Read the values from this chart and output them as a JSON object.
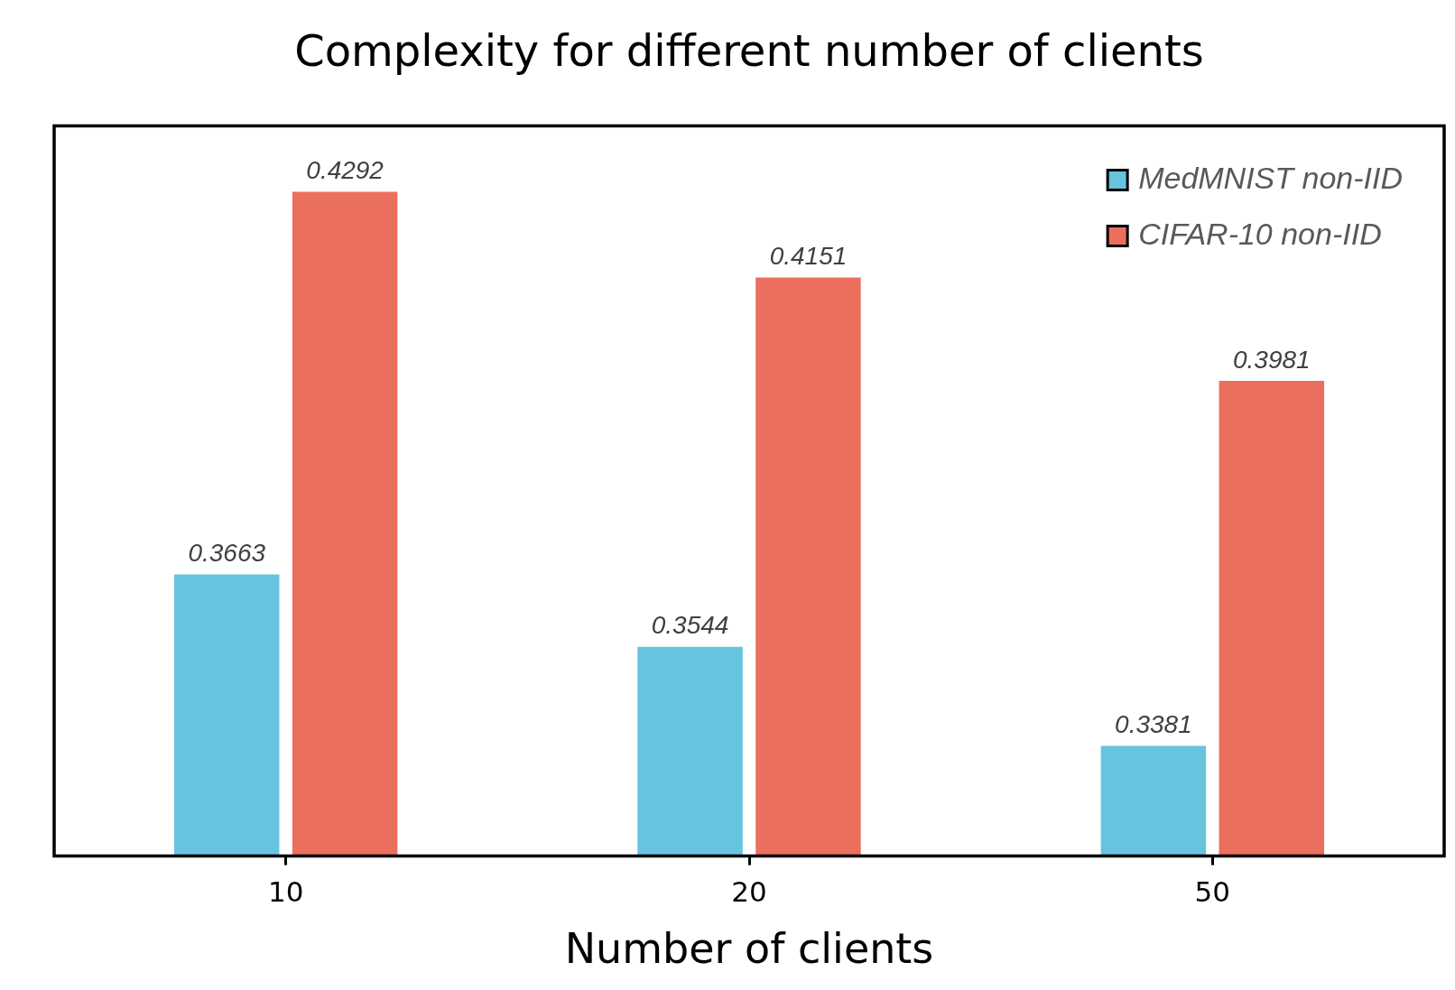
{
  "chart_data": {
    "type": "bar",
    "title": "Complexity for different number of clients",
    "xlabel": "Number of clients",
    "categories": [
      "10",
      "20",
      "50"
    ],
    "series": [
      {
        "name": "MedMNIST non-IID",
        "color": "#67c4de",
        "values": [
          0.3663,
          0.3544,
          0.3381
        ]
      },
      {
        "name": "CIFAR-10 non-IID",
        "color": "#eb6f5e",
        "values": [
          0.4292,
          0.4151,
          0.3981
        ]
      }
    ],
    "ylim": [
      0.32,
      0.44
    ],
    "tick_labels": "x",
    "data_labels": true,
    "legend": "top right",
    "grid": false
  }
}
